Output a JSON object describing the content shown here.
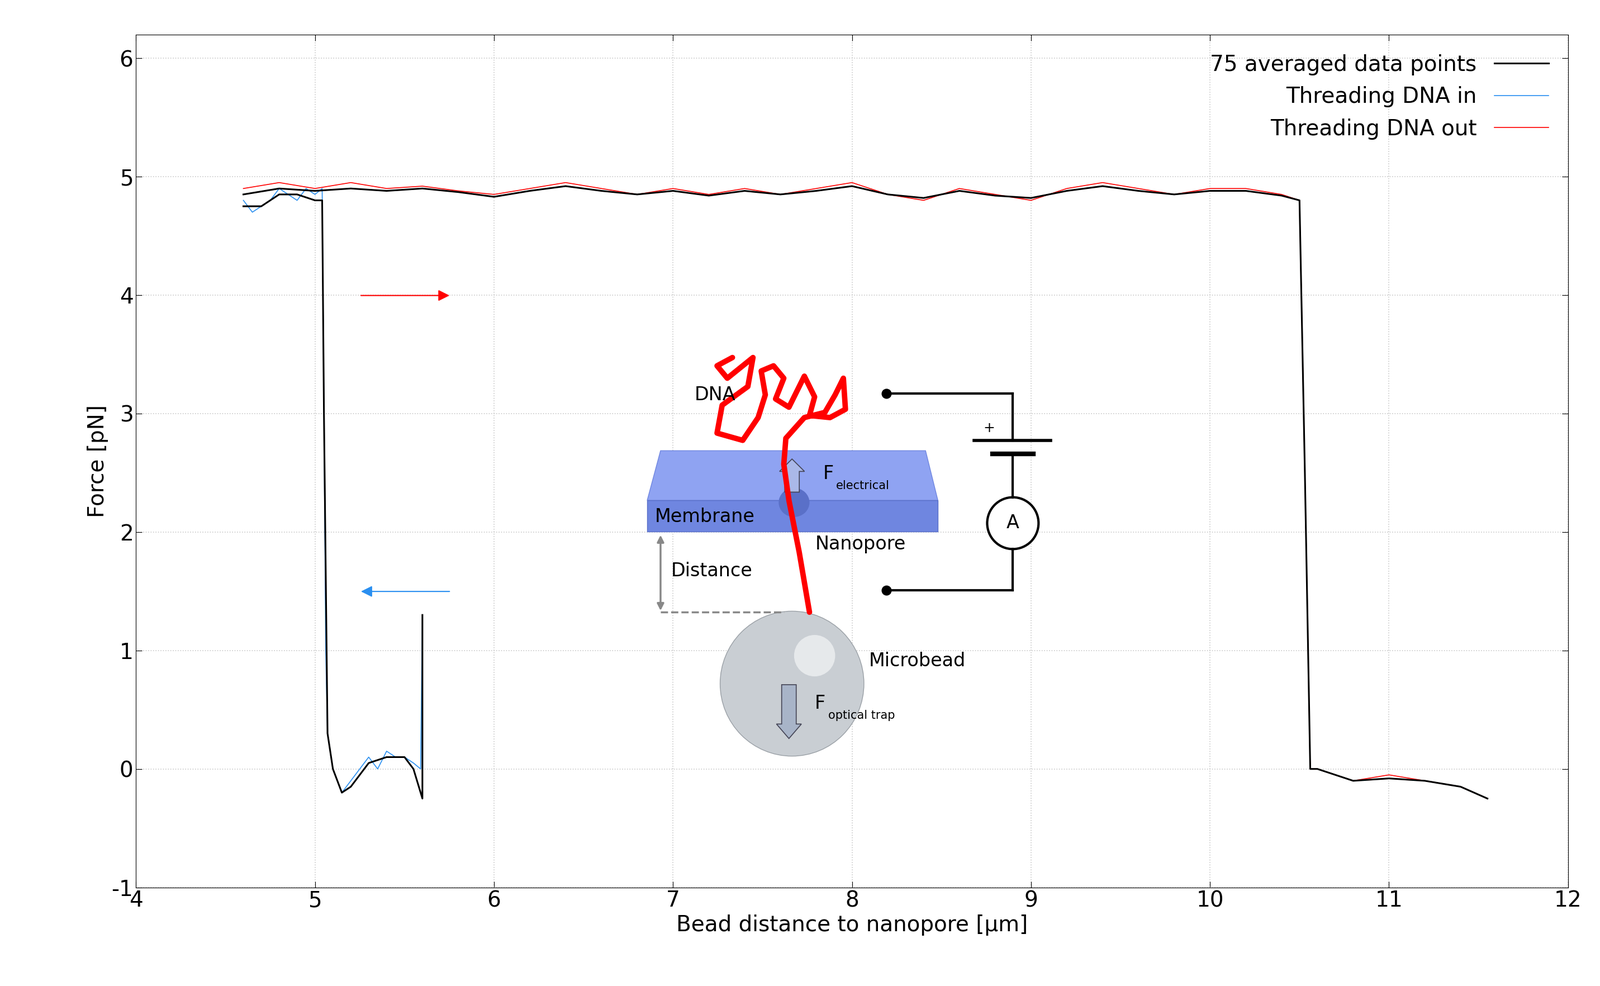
{
  "chart_data": {
    "type": "line",
    "x_label": "Bead distance to nanopore [µm]",
    "y_label": "Force [pN]",
    "xlim": [
      4,
      12
    ],
    "xticks": [
      4,
      5,
      6,
      7,
      8,
      9,
      10,
      11,
      12
    ],
    "ylim": [
      -1,
      6.2
    ],
    "yticks": [
      -1,
      0,
      1,
      2,
      3,
      4,
      5,
      6
    ],
    "grid": true,
    "legend": "upper right",
    "series": [
      {
        "name": "Threading DNA out",
        "color": "#ff0000",
        "x": [
          4.6,
          4.8,
          5.0,
          5.2,
          5.4,
          5.6,
          5.8,
          6.0,
          6.2,
          6.4,
          6.6,
          6.8,
          7.0,
          7.2,
          7.4,
          7.6,
          7.8,
          8.0,
          8.2,
          8.4,
          8.6,
          8.8,
          9.0,
          9.2,
          9.4,
          9.6,
          9.8,
          10.0,
          10.2,
          10.4,
          10.5,
          10.53,
          10.56,
          10.6,
          10.8,
          11.0,
          11.2,
          11.4,
          11.55
        ],
        "values": [
          4.9,
          4.95,
          4.9,
          4.95,
          4.9,
          4.92,
          4.88,
          4.85,
          4.9,
          4.95,
          4.9,
          4.85,
          4.9,
          4.85,
          4.9,
          4.85,
          4.9,
          4.95,
          4.85,
          4.8,
          4.9,
          4.85,
          4.8,
          4.9,
          4.95,
          4.9,
          4.85,
          4.9,
          4.9,
          4.85,
          4.8,
          2.5,
          0.0,
          0.0,
          -0.1,
          -0.05,
          -0.1,
          -0.15,
          -0.25
        ]
      },
      {
        "name": "Threading DNA in",
        "color": "#2a8ff0",
        "x": [
          5.6,
          5.59,
          5.55,
          5.5,
          5.45,
          5.4,
          5.35,
          5.3,
          5.25,
          5.2,
          5.15,
          5.1,
          5.07,
          5.06,
          5.05,
          5.04,
          5.0,
          4.95,
          4.9,
          4.85,
          4.8,
          4.75,
          4.7,
          4.65,
          4.6
        ],
        "values": [
          1.3,
          0.0,
          0.05,
          0.1,
          0.1,
          0.15,
          0.0,
          0.1,
          0.0,
          -0.1,
          -0.2,
          0.0,
          0.3,
          1.0,
          3.0,
          4.9,
          4.85,
          4.9,
          4.8,
          4.85,
          4.9,
          4.8,
          4.75,
          4.7,
          4.8
        ]
      },
      {
        "name": "75 averaged data points",
        "color": "#000000",
        "x": [
          5.6,
          5.6,
          5.55,
          5.5,
          5.4,
          5.3,
          5.2,
          5.15,
          5.1,
          5.07,
          5.05,
          5.04,
          5.0,
          4.9,
          4.8,
          4.7,
          4.6,
          null,
          4.6,
          4.8,
          5.0,
          5.2,
          5.4,
          5.6,
          5.8,
          6.0,
          6.2,
          6.4,
          6.6,
          6.8,
          7.0,
          7.2,
          7.4,
          7.6,
          7.8,
          8.0,
          8.2,
          8.4,
          8.6,
          8.8,
          9.0,
          9.2,
          9.4,
          9.6,
          9.8,
          10.0,
          10.2,
          10.4,
          10.5,
          10.53,
          10.56,
          10.6,
          10.8,
          11.0,
          11.2,
          11.4,
          11.55
        ],
        "values": [
          1.3,
          -0.25,
          0.0,
          0.1,
          0.1,
          0.05,
          -0.15,
          -0.2,
          0.0,
          0.3,
          3.0,
          4.8,
          4.8,
          4.85,
          4.85,
          4.75,
          4.75,
          null,
          4.85,
          4.9,
          4.88,
          4.9,
          4.88,
          4.9,
          4.87,
          4.83,
          4.88,
          4.92,
          4.88,
          4.85,
          4.88,
          4.84,
          4.88,
          4.85,
          4.88,
          4.92,
          4.85,
          4.82,
          4.88,
          4.84,
          4.82,
          4.88,
          4.92,
          4.88,
          4.85,
          4.88,
          4.88,
          4.84,
          4.8,
          2.5,
          0.0,
          0.0,
          -0.1,
          -0.08,
          -0.1,
          -0.15,
          -0.25
        ]
      }
    ],
    "legend_order": [
      "75 averaged data points",
      "Threading DNA in",
      "Threading DNA out"
    ],
    "annotations": {
      "dna": "DNA",
      "membrane": "Membrane",
      "nanopore": "Nanopore",
      "distance": "Distance",
      "microbead": "Microbead",
      "f_electrical": [
        "F",
        "electrical"
      ],
      "f_optical": [
        "F",
        "optical trap"
      ],
      "battery_plus": "+",
      "ammeter": "A"
    }
  }
}
